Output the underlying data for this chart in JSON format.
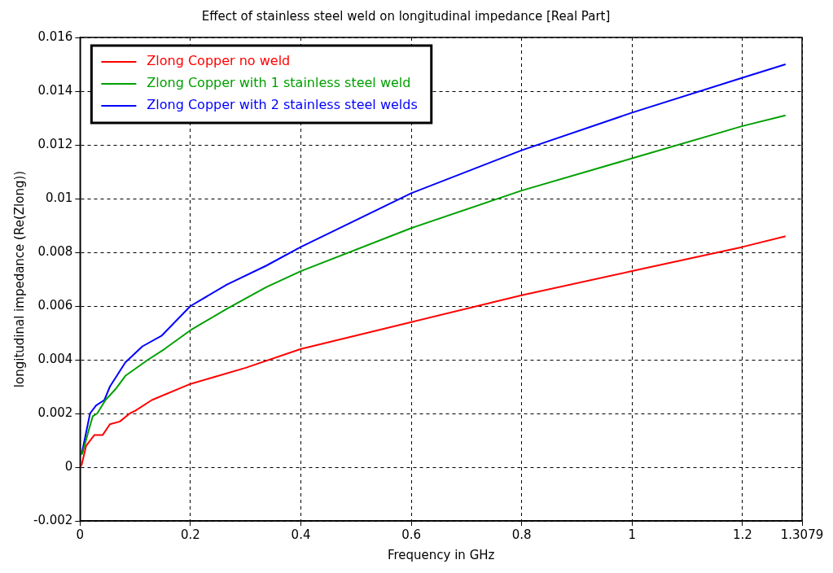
{
  "chart_data": {
    "type": "line",
    "title": "Effect of stainless steel weld on longitudinal impedance [Real Part]",
    "xlabel": "Frequency in GHz",
    "ylabel": "longitudinal impedance (Re(Zlong))",
    "xlim": [
      0,
      1.3079
    ],
    "xticks": [
      0,
      0.2,
      0.4,
      0.6,
      0.8,
      1,
      1.2,
      1.3079
    ],
    "ylim": [
      -0.002,
      0.016
    ],
    "yticks": [
      -0.002,
      0,
      0.002,
      0.004,
      0.006,
      0.008,
      0.01,
      0.012,
      0.014,
      0.016
    ],
    "grid": true,
    "legend": "top left",
    "marker": "none",
    "line_style": "solid",
    "series": [
      {
        "name": "Zlong Copper no weld",
        "color": "#ff0000",
        "x": [
          0,
          0.003,
          0.011,
          0.026,
          0.041,
          0.054,
          0.072,
          0.09,
          0.1,
          0.13,
          0.2,
          0.3,
          0.4,
          0.6,
          0.8,
          1,
          1.2,
          1.278
        ],
        "values": [
          0,
          0.0001,
          0.0008,
          0.0012,
          0.0012,
          0.0016,
          0.0017,
          0.002,
          0.0021,
          0.0025,
          0.0031,
          0.0037,
          0.0044,
          0.0054,
          0.0064,
          0.0073,
          0.0082,
          0.0086
        ]
      },
      {
        "name": "Zlong Copper with 1 stainless steel weld",
        "color": "#00a000",
        "x": [
          0,
          0.004,
          0.016,
          0.023,
          0.031,
          0.046,
          0.064,
          0.082,
          0.123,
          0.153,
          0.2,
          0.266,
          0.337,
          0.4,
          0.6,
          0.8,
          1,
          1.2,
          1.278
        ],
        "values": [
          0.0005,
          0.0005,
          0.0014,
          0.0019,
          0.002,
          0.0025,
          0.0029,
          0.0034,
          0.004,
          0.0044,
          0.0051,
          0.0059,
          0.0067,
          0.0073,
          0.0089,
          0.0103,
          0.0115,
          0.0127,
          0.0131
        ]
      },
      {
        "name": "Zlong Copper with 2 stainless steel welds",
        "color": "#0000ff",
        "x": [
          0,
          0.003,
          0.018,
          0.029,
          0.044,
          0.054,
          0.082,
          0.113,
          0.148,
          0.2,
          0.266,
          0.337,
          0.4,
          0.6,
          0.8,
          1,
          1.2,
          1.278
        ],
        "values": [
          0.0005,
          0.0005,
          0.002,
          0.0023,
          0.0025,
          0.003,
          0.0039,
          0.0045,
          0.0049,
          0.006,
          0.0068,
          0.0075,
          0.0082,
          0.0102,
          0.0118,
          0.0132,
          0.0145,
          0.015
        ]
      }
    ]
  }
}
